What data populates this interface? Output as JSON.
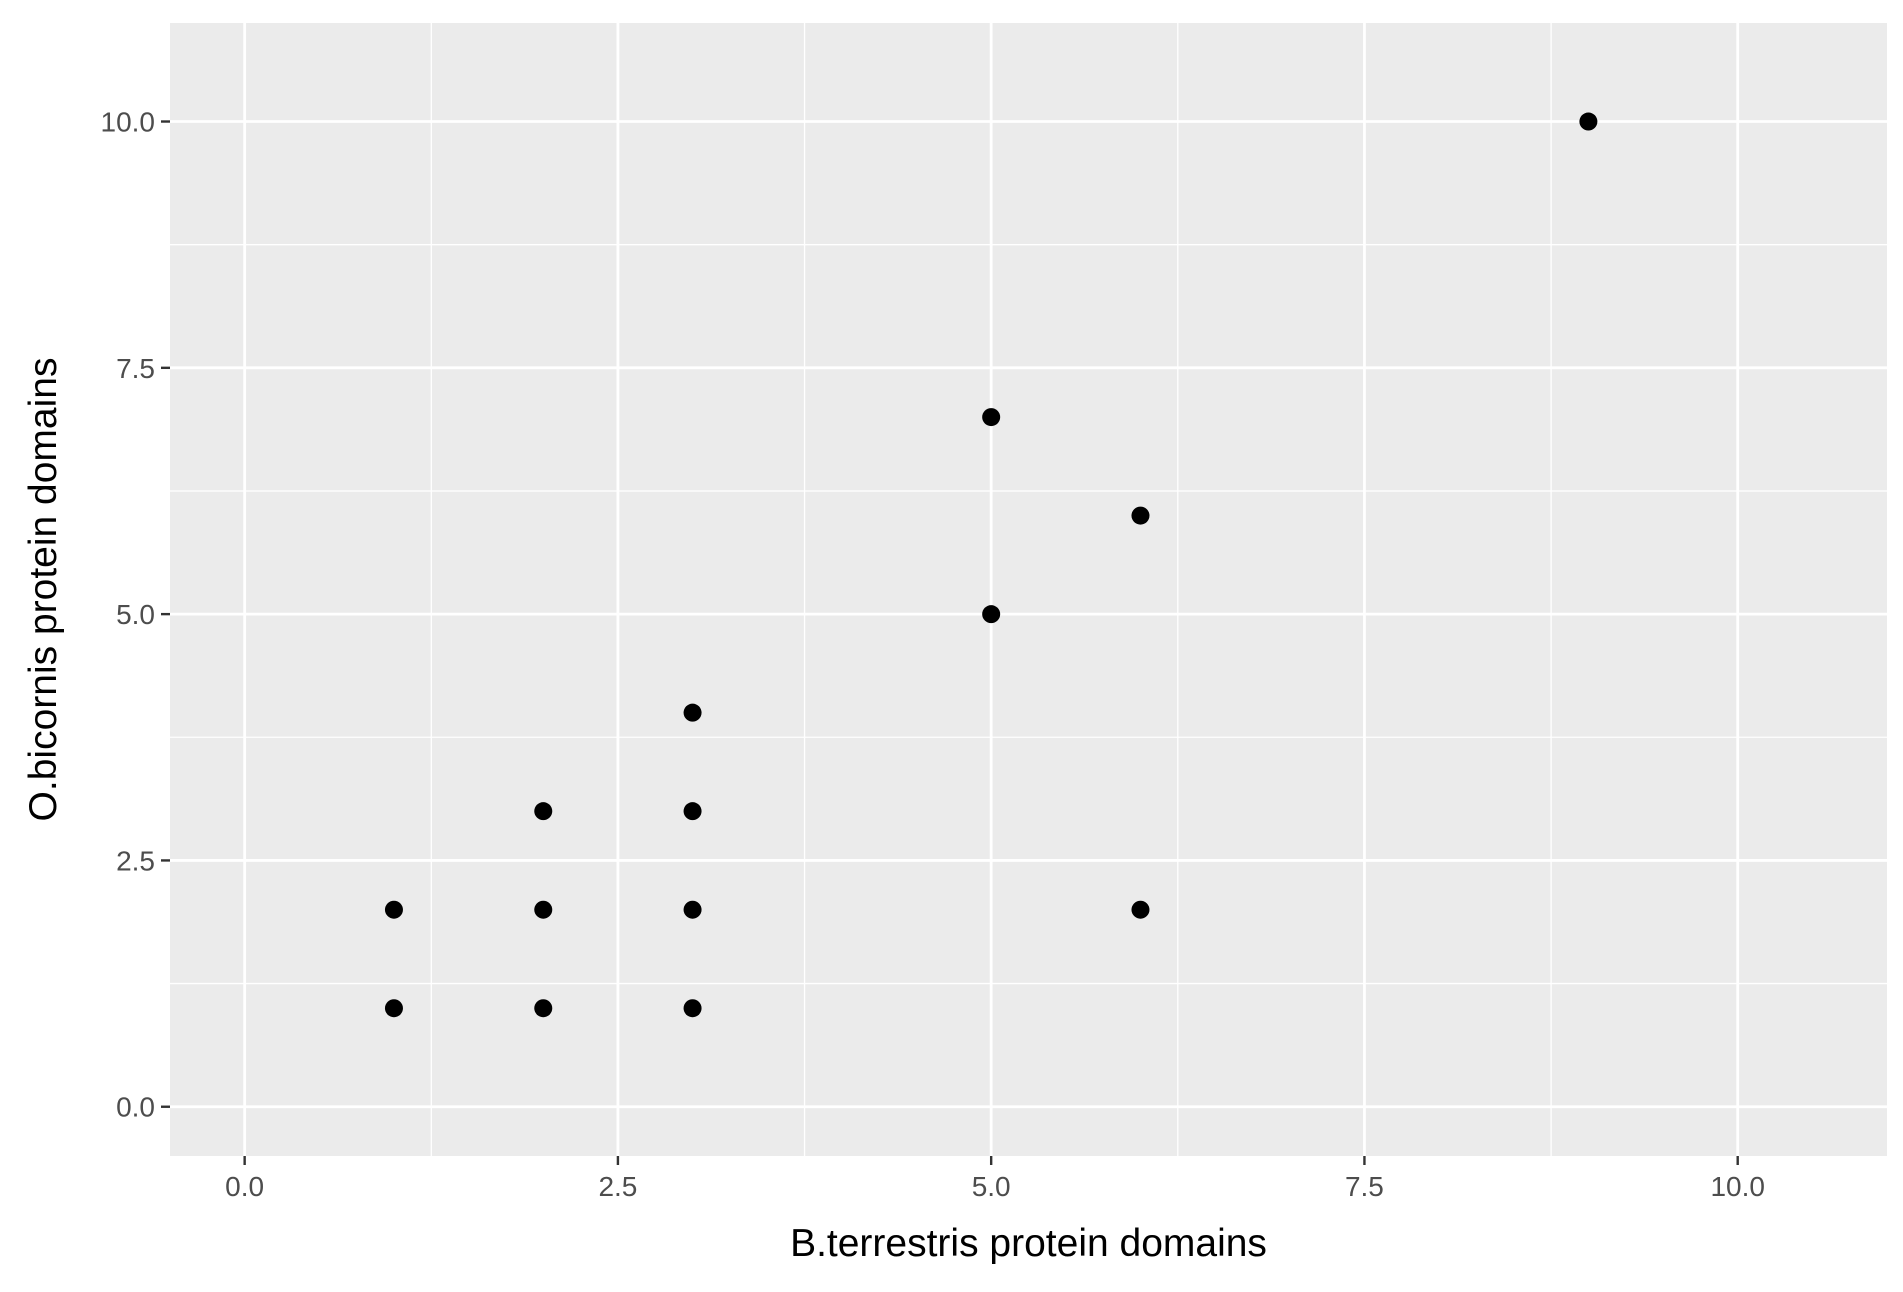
{
  "chart_data": {
    "type": "scatter",
    "title": "",
    "xlabel": "B.terrestris protein domains",
    "ylabel": "O.bicornis protein domains",
    "xlim": [
      -0.5,
      11.0
    ],
    "ylim": [
      -0.5,
      11.0
    ],
    "x_ticks": [
      0.0,
      2.5,
      5.0,
      7.5,
      10.0
    ],
    "x_tick_labels": [
      "0.0",
      "2.5",
      "5.0",
      "7.5",
      "10.0"
    ],
    "y_ticks": [
      0.0,
      2.5,
      5.0,
      7.5,
      10.0
    ],
    "y_tick_labels": [
      "0.0",
      "2.5",
      "5.0",
      "7.5",
      "10.0"
    ],
    "x_minor_ticks": [
      1.25,
      3.75,
      6.25,
      8.75
    ],
    "y_minor_ticks": [
      1.25,
      3.75,
      6.25,
      8.75
    ],
    "grid": true,
    "legend": "none",
    "colors": {
      "panel_background": "#ebebeb",
      "grid_major": "#ffffff",
      "grid_minor": "#ffffff",
      "point": "#000000",
      "tick_label": "#4d4d4d",
      "tick_mark": "#333333"
    },
    "series": [
      {
        "x": [
          1,
          1,
          2,
          2,
          2,
          3,
          3,
          3,
          3,
          5,
          5,
          6,
          6,
          9
        ],
        "y": [
          1,
          2,
          1,
          2,
          3,
          1,
          2,
          3,
          4,
          5,
          7,
          2,
          6,
          10
        ]
      }
    ]
  }
}
